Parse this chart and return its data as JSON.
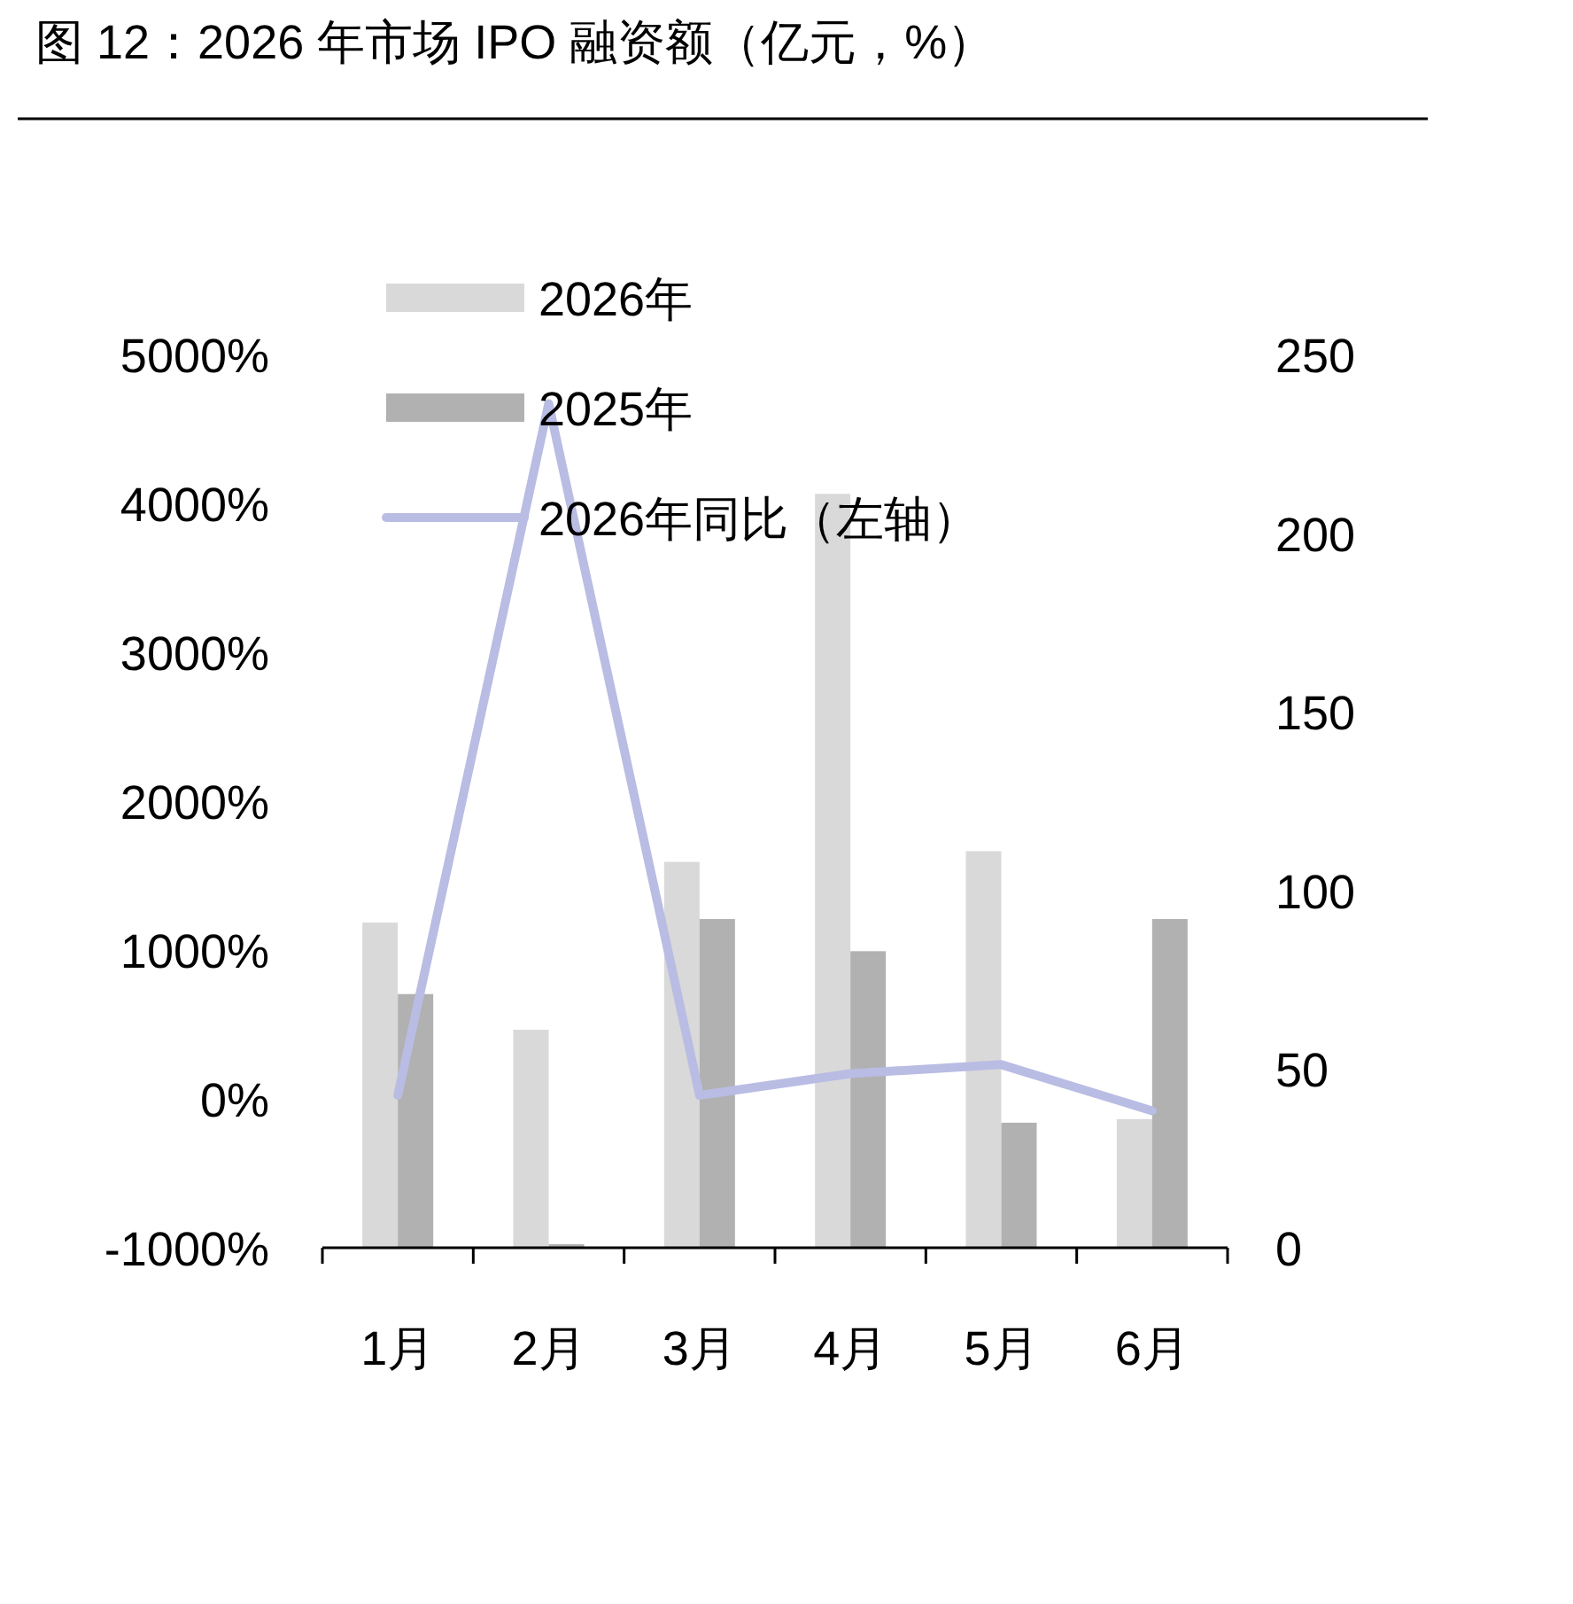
{
  "chart_data": {
    "type": "bar",
    "title": "图 12：2026 年市场 IPO 融资额（亿元，%）",
    "categories": [
      "1月",
      "2月",
      "3月",
      "4月",
      "5月",
      "6月"
    ],
    "series": [
      {
        "name": "2026年",
        "color": "#d9d9d9",
        "axis": "y2",
        "values": [
          91,
          61,
          108,
          211,
          111,
          36
        ]
      },
      {
        "name": "2025年",
        "color": "#b0b1b0",
        "axis": "y2",
        "values": [
          71,
          1,
          92,
          83,
          35,
          92
        ]
      },
      {
        "name": "2026年同比（左轴）",
        "type": "line",
        "color": "#b9bce3",
        "axis": "y",
        "values": [
          24,
          4670,
          24,
          170,
          230,
          -80
        ]
      }
    ],
    "ylim": [
      -1000,
      5000
    ],
    "yticks": [
      {
        "value": -1000,
        "label": "-1000%"
      },
      {
        "value": 0,
        "label": "0%"
      },
      {
        "value": 1000,
        "label": "1000%"
      },
      {
        "value": 2000,
        "label": "2000%"
      },
      {
        "value": 3000,
        "label": "3000%"
      },
      {
        "value": 4000,
        "label": "4000%"
      },
      {
        "value": 5000,
        "label": "5000%"
      }
    ],
    "y2lim": [
      0,
      250
    ],
    "y2ticks": [
      0,
      50,
      100,
      150,
      200,
      250
    ],
    "grid": false,
    "legend": "top left",
    "marker": "none",
    "line_style": "solid"
  }
}
